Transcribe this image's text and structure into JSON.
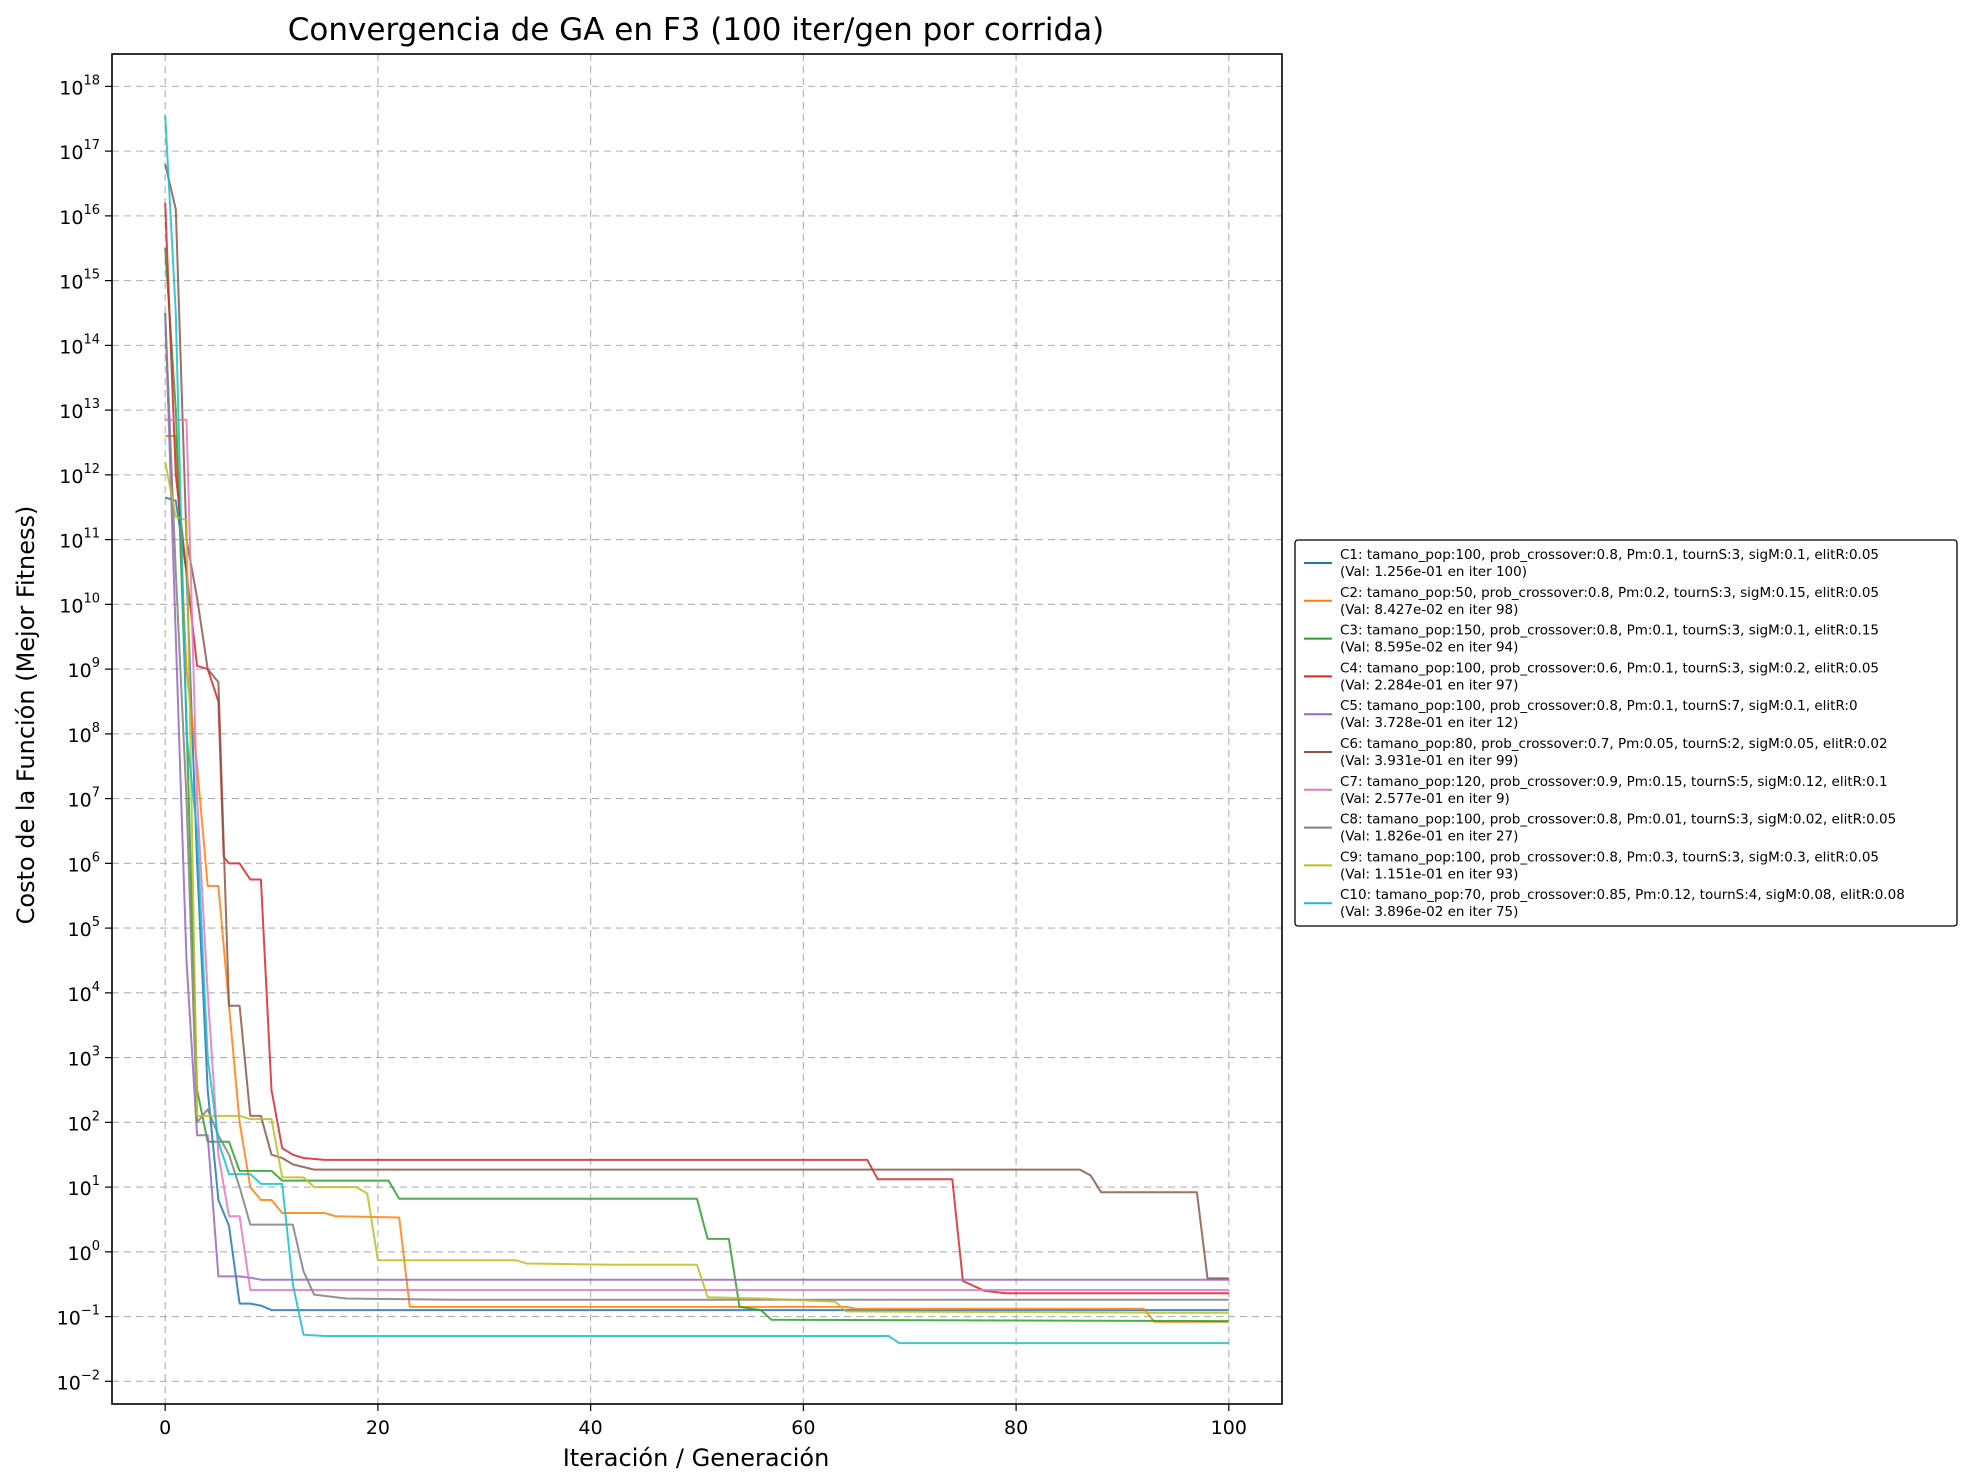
{
  "chart_data": {
    "type": "line",
    "title": "Convergencia de GA en F3 (100 iter/gen por corrida)",
    "xlabel": "Iteración / Generación",
    "ylabel": "Costo de la Función (Mejor Fitness)",
    "xlim": [
      -5,
      105
    ],
    "ylim_log10": [
      -2.35,
      18.5
    ],
    "yscale": "log",
    "x_ticks": [
      0,
      20,
      40,
      60,
      80,
      100
    ],
    "y_ticks_log10": [
      -2,
      -1,
      0,
      1,
      2,
      3,
      4,
      5,
      6,
      7,
      8,
      9,
      10,
      11,
      12,
      13,
      14,
      15,
      16,
      17,
      18
    ],
    "grid": true,
    "legend_position": "right-outside",
    "series": [
      {
        "name": "C1: tamano_pop:100, prob_crossover:0.8, Pm:0.1, tournS:3, sigM:0.1, elitR:0.05",
        "note": "(Val: 1.256e-01 en iter 100)",
        "color": "#1f77b4",
        "points": [
          [
            0,
            11.65
          ],
          [
            1,
            11.6
          ],
          [
            2,
            10.5
          ],
          [
            3,
            6.0
          ],
          [
            4,
            2.5
          ],
          [
            5,
            0.8
          ],
          [
            6,
            0.4
          ],
          [
            7,
            -0.8
          ],
          [
            8,
            -0.8
          ],
          [
            9,
            -0.83
          ],
          [
            10,
            -0.9
          ],
          [
            15,
            -0.9
          ],
          [
            100,
            -0.9
          ]
        ]
      },
      {
        "name": "C2: tamano_pop:50, prob_crossover:0.8, Pm:0.2, tournS:3, sigM:0.15, elitR:0.05",
        "note": "(Val: 8.427e-02 en iter 98)",
        "color": "#ff7f0e",
        "points": [
          [
            0,
            12.6
          ],
          [
            1,
            12.6
          ],
          [
            2,
            9.0
          ],
          [
            3,
            7.5
          ],
          [
            4,
            5.65
          ],
          [
            5,
            5.65
          ],
          [
            6,
            3.8
          ],
          [
            7,
            2.0
          ],
          [
            8,
            1.0
          ],
          [
            9,
            0.8
          ],
          [
            10,
            0.8
          ],
          [
            11,
            0.6
          ],
          [
            15,
            0.6
          ],
          [
            16,
            0.55
          ],
          [
            22,
            0.53
          ],
          [
            23,
            -0.85
          ],
          [
            64,
            -0.85
          ],
          [
            65,
            -0.88
          ],
          [
            92,
            -0.88
          ],
          [
            93,
            -1.08
          ],
          [
            100,
            -1.08
          ]
        ]
      },
      {
        "name": "C3: tamano_pop:150, prob_crossover:0.8, Pm:0.1, tournS:3, sigM:0.1, elitR:0.15",
        "note": "(Val: 8.595e-02 en iter 94)",
        "color": "#2ca02c",
        "points": [
          [
            0,
            15.5
          ],
          [
            1,
            13.0
          ],
          [
            2,
            8.2
          ],
          [
            3,
            2.5
          ],
          [
            4,
            1.7
          ],
          [
            5,
            1.7
          ],
          [
            6,
            1.7
          ],
          [
            7,
            1.25
          ],
          [
            10,
            1.25
          ],
          [
            11,
            1.1
          ],
          [
            21,
            1.1
          ],
          [
            22,
            0.82
          ],
          [
            50,
            0.82
          ],
          [
            51,
            0.2
          ],
          [
            53,
            0.2
          ],
          [
            54,
            -0.85
          ],
          [
            56,
            -0.9
          ],
          [
            57,
            -1.05
          ],
          [
            100,
            -1.07
          ]
        ]
      },
      {
        "name": "C4: tamano_pop:100, prob_crossover:0.6, Pm:0.1, tournS:3, sigM:0.2, elitR:0.05",
        "note": "(Val: 2.284e-01 en iter 97)",
        "color": "#d62728",
        "points": [
          [
            0,
            16.2
          ],
          [
            1,
            12.0
          ],
          [
            2,
            10.5
          ],
          [
            3,
            9.05
          ],
          [
            4,
            9.0
          ],
          [
            5,
            8.5
          ],
          [
            5.5,
            6.1
          ],
          [
            6,
            6.0
          ],
          [
            7,
            6.0
          ],
          [
            8,
            5.75
          ],
          [
            9,
            5.75
          ],
          [
            10,
            2.5
          ],
          [
            11,
            1.6
          ],
          [
            12,
            1.5
          ],
          [
            13,
            1.45
          ],
          [
            15,
            1.42
          ],
          [
            66,
            1.42
          ],
          [
            67,
            1.12
          ],
          [
            74,
            1.12
          ],
          [
            75,
            -0.45
          ],
          [
            77,
            -0.6
          ],
          [
            79,
            -0.64
          ],
          [
            100,
            -0.64
          ]
        ]
      },
      {
        "name": "C5: tamano_pop:100, prob_crossover:0.8, Pm:0.1, tournS:7, sigM:0.1, elitR:0",
        "note": "(Val: 3.728e-01 en iter 12)",
        "color": "#9467bd",
        "points": [
          [
            0,
            14.5
          ],
          [
            1,
            9.5
          ],
          [
            2,
            4.5
          ],
          [
            3,
            1.8
          ],
          [
            4,
            1.8
          ],
          [
            5,
            -0.38
          ],
          [
            6,
            -0.38
          ],
          [
            7,
            -0.38
          ],
          [
            8,
            -0.4
          ],
          [
            9,
            -0.43
          ],
          [
            100,
            -0.43
          ]
        ]
      },
      {
        "name": "C6: tamano_pop:80, prob_crossover:0.7, Pm:0.05, tournS:2, sigM:0.05, elitR:0.02",
        "note": "(Val: 3.931e-01 en iter 99)",
        "color": "#8c564b",
        "points": [
          [
            0,
            16.8
          ],
          [
            1,
            16.1
          ],
          [
            2,
            11.0
          ],
          [
            3,
            10.1
          ],
          [
            4,
            9.0
          ],
          [
            5,
            8.8
          ],
          [
            6,
            3.8
          ],
          [
            7,
            3.8
          ],
          [
            8,
            2.1
          ],
          [
            9,
            2.1
          ],
          [
            10,
            1.5
          ],
          [
            11,
            1.45
          ],
          [
            12,
            1.35
          ],
          [
            14,
            1.27
          ],
          [
            86,
            1.27
          ],
          [
            87,
            1.18
          ],
          [
            88,
            0.92
          ],
          [
            97,
            0.92
          ],
          [
            98,
            -0.41
          ],
          [
            100,
            -0.41
          ]
        ]
      },
      {
        "name": "C7: tamano_pop:120, prob_crossover:0.9, Pm:0.15, tournS:5, sigM:0.12, elitR:0.1",
        "note": "(Val: 2.577e-01 en iter 9)",
        "color": "#e377c2",
        "points": [
          [
            0,
            12.85
          ],
          [
            1,
            12.85
          ],
          [
            2,
            12.85
          ],
          [
            3,
            7.0
          ],
          [
            4,
            4.0
          ],
          [
            5,
            1.5
          ],
          [
            6,
            0.55
          ],
          [
            7,
            0.55
          ],
          [
            8,
            -0.59
          ],
          [
            9,
            -0.59
          ],
          [
            100,
            -0.59
          ]
        ]
      },
      {
        "name": "C8: tamano_pop:100, prob_crossover:0.8, Pm:0.01, tournS:3, sigM:0.02, elitR:0.05",
        "note": "(Val: 1.826e-01 en iter 27)",
        "color": "#7f7f7f",
        "points": [
          [
            0,
            14.5
          ],
          [
            1,
            10.5
          ],
          [
            2,
            7.0
          ],
          [
            3,
            2.0
          ],
          [
            4,
            2.2
          ],
          [
            5,
            1.8
          ],
          [
            6,
            1.5
          ],
          [
            7,
            1.0
          ],
          [
            8,
            0.42
          ],
          [
            12,
            0.42
          ],
          [
            13,
            -0.3
          ],
          [
            14,
            -0.66
          ],
          [
            17,
            -0.72
          ],
          [
            27,
            -0.74
          ],
          [
            100,
            -0.74
          ]
        ]
      },
      {
        "name": "C9: tamano_pop:100, prob_crossover:0.8, Pm:0.3, tournS:3, sigM:0.3, elitR:0.05",
        "note": "(Val: 1.151e-01 en iter 93)",
        "color": "#bcbd22",
        "points": [
          [
            0,
            12.2
          ],
          [
            1,
            11.35
          ],
          [
            2,
            11.3
          ],
          [
            3,
            2.1
          ],
          [
            7,
            2.1
          ],
          [
            8,
            2.05
          ],
          [
            10,
            2.05
          ],
          [
            11,
            1.15
          ],
          [
            13,
            1.15
          ],
          [
            14,
            1.0
          ],
          [
            18,
            1.0
          ],
          [
            19,
            0.9
          ],
          [
            20,
            -0.13
          ],
          [
            33,
            -0.13
          ],
          [
            34,
            -0.18
          ],
          [
            42,
            -0.2
          ],
          [
            50,
            -0.2
          ],
          [
            51,
            -0.7
          ],
          [
            56,
            -0.72
          ],
          [
            60,
            -0.75
          ],
          [
            63,
            -0.77
          ],
          [
            64,
            -0.92
          ],
          [
            93,
            -0.94
          ],
          [
            100,
            -0.94
          ]
        ]
      },
      {
        "name": "C10: tamano_pop:70, prob_crossover:0.85, Pm:0.12, tournS:4, sigM:0.08, elitR:0.08",
        "note": "(Val: 3.896e-02 en iter 75)",
        "color": "#17becf",
        "points": [
          [
            0,
            17.55
          ],
          [
            1,
            14.5
          ],
          [
            2,
            8.0
          ],
          [
            3,
            6.5
          ],
          [
            4,
            3.0
          ],
          [
            5,
            1.7
          ],
          [
            6,
            1.2
          ],
          [
            8,
            1.2
          ],
          [
            9,
            1.05
          ],
          [
            11,
            1.05
          ],
          [
            12,
            -0.5
          ],
          [
            13,
            -1.28
          ],
          [
            15,
            -1.3
          ],
          [
            68,
            -1.3
          ],
          [
            69,
            -1.41
          ],
          [
            100,
            -1.41
          ]
        ]
      }
    ]
  }
}
